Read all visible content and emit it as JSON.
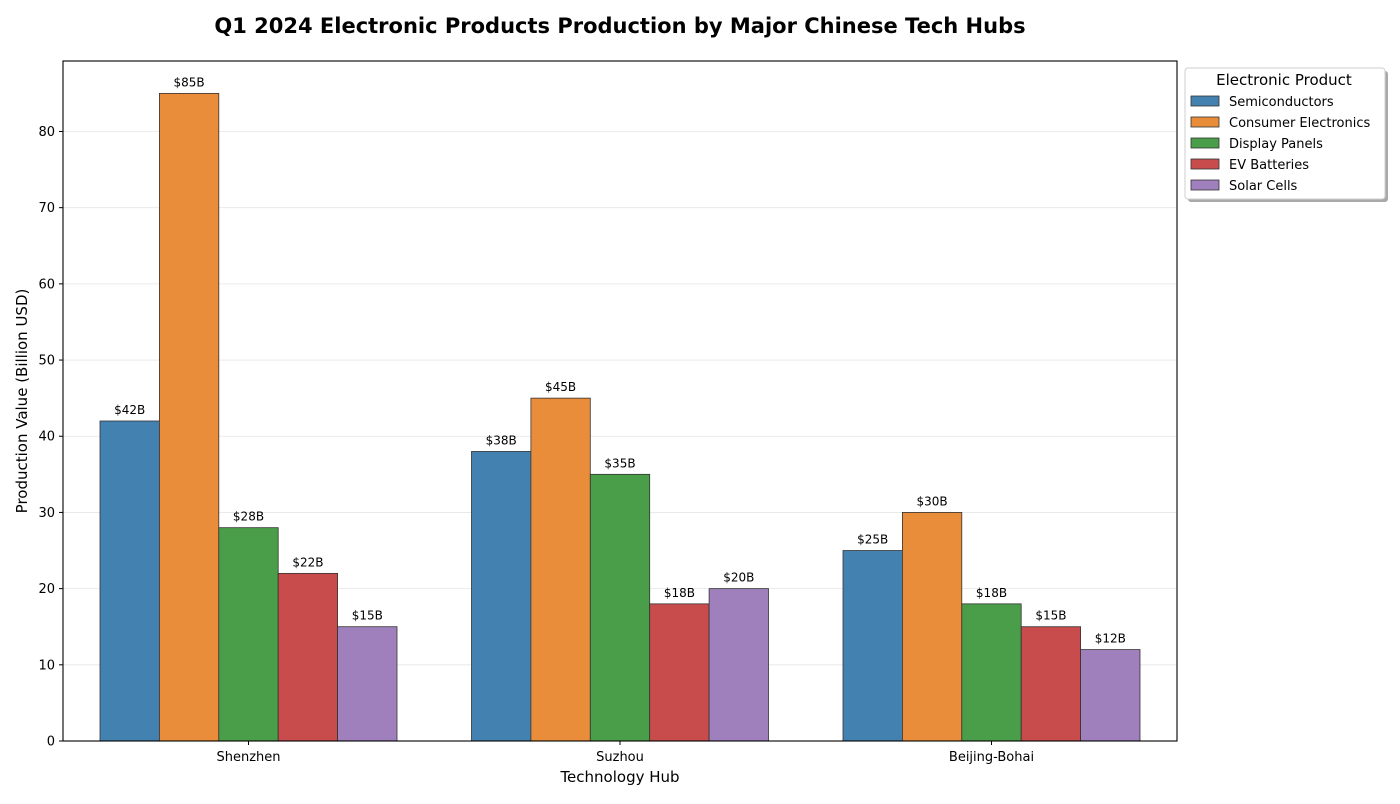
{
  "chart_data": {
    "type": "bar",
    "title": "Q1 2024 Electronic Products Production by Major Chinese Tech Hubs",
    "xlabel": "Technology Hub",
    "ylabel": "Production Value (Billion USD)",
    "categories": [
      "Shenzhen",
      "Suzhou",
      "Beijing-Bohai"
    ],
    "ylim": [
      0,
      89.25
    ],
    "yticks": [
      0,
      10,
      20,
      30,
      40,
      50,
      60,
      70,
      80
    ],
    "grid": "horizontal",
    "legend": {
      "title": "Electronic Product",
      "placement": "outside-top-right"
    },
    "series": [
      {
        "name": "Semiconductors",
        "color": "#4281b0",
        "values": [
          42,
          38,
          25
        ],
        "labels": [
          "$42B",
          "$38B",
          "$25B"
        ]
      },
      {
        "name": "Consumer Electronics",
        "color": "#e98d3a",
        "values": [
          85,
          45,
          30
        ],
        "labels": [
          "$85B",
          "$45B",
          "$30B"
        ]
      },
      {
        "name": "Display Panels",
        "color": "#4a9e4a",
        "values": [
          28,
          35,
          18
        ],
        "labels": [
          "$28B",
          "$35B",
          "$18B"
        ]
      },
      {
        "name": "EV Batteries",
        "color": "#c94c4c",
        "values": [
          22,
          18,
          15
        ],
        "labels": [
          "$22B",
          "$18B",
          "$15B"
        ]
      },
      {
        "name": "Solar Cells",
        "color": "#9f80bc",
        "values": [
          15,
          20,
          12
        ],
        "labels": [
          "$15B",
          "$20B",
          "$12B"
        ]
      }
    ]
  }
}
